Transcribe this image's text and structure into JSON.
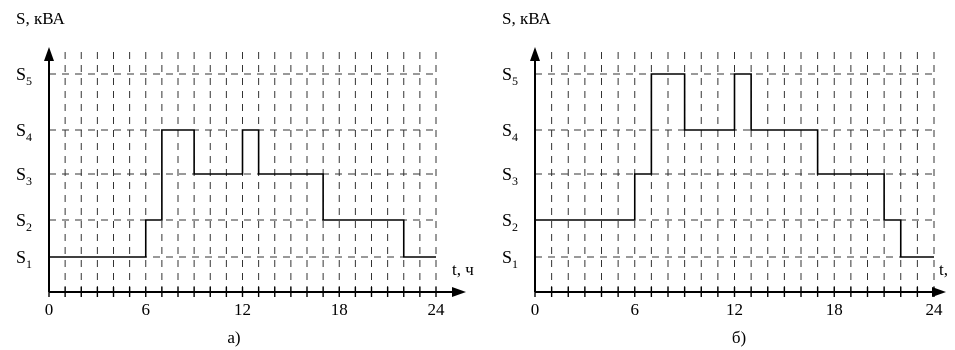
{
  "chart_data": [
    {
      "type": "line",
      "panel_label": "а)",
      "ylabel": "S, кВА",
      "xlabel": "t, ч",
      "x_ticks": [
        "0",
        "6",
        "12",
        "18",
        "24"
      ],
      "xlim": [
        0,
        24
      ],
      "y_levels": [
        "S1",
        "S2",
        "S3",
        "S4",
        "S5"
      ],
      "grid": true,
      "series": [
        {
          "step": "post",
          "x": [
            0,
            6,
            7,
            9,
            12,
            13,
            17,
            22,
            24
          ],
          "y": [
            "S1",
            "S2",
            "S4",
            "S3",
            "S4",
            "S3",
            "S2",
            "S1",
            "S1"
          ]
        }
      ]
    },
    {
      "type": "line",
      "panel_label": "б)",
      "ylabel": "S, кВА",
      "xlabel": "t,",
      "x_ticks": [
        "0",
        "6",
        "12",
        "18",
        "24"
      ],
      "xlim": [
        0,
        24
      ],
      "y_levels": [
        "S1",
        "S2",
        "S3",
        "S4",
        "S5"
      ],
      "grid": true,
      "series": [
        {
          "step": "post",
          "x": [
            0,
            6,
            7,
            9,
            12,
            13,
            17,
            21,
            22,
            24
          ],
          "y": [
            "S2",
            "S3",
            "S5",
            "S4",
            "S5",
            "S4",
            "S3",
            "S2",
            "S1",
            "S1"
          ]
        }
      ]
    }
  ]
}
